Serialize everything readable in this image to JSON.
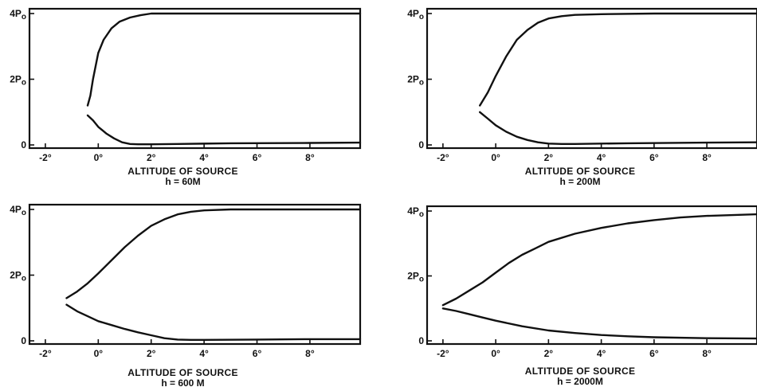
{
  "chart_data": [
    {
      "type": "line",
      "xlabel": "ALTITUDE OF SOURCE",
      "subtitle": "h = 60M",
      "xlim": [
        -2.6,
        9.9
      ],
      "ylim": [
        0,
        4
      ],
      "xticks": [
        {
          "v": -2,
          "label": "-2°"
        },
        {
          "v": 0,
          "label": "0°"
        },
        {
          "v": 2,
          "label": "2°"
        },
        {
          "v": 4,
          "label": "4°"
        },
        {
          "v": 6,
          "label": "6°"
        },
        {
          "v": 8,
          "label": "8°"
        }
      ],
      "yticks": [
        {
          "v": 0,
          "label": "0"
        },
        {
          "v": 2,
          "label": "2Po"
        },
        {
          "v": 4,
          "label": "4Po"
        }
      ],
      "grid": false,
      "series": [
        {
          "x": [
            -0.4,
            -0.3,
            -0.2,
            0,
            0.2,
            0.5,
            0.8,
            1.2,
            1.6,
            2.0,
            3,
            5,
            8,
            9.9
          ],
          "values": [
            1.2,
            1.5,
            2.0,
            2.8,
            3.2,
            3.55,
            3.75,
            3.88,
            3.95,
            4.0,
            4.0,
            4.0,
            4.0,
            4.0
          ]
        },
        {
          "x": [
            -0.4,
            -0.2,
            0,
            0.3,
            0.6,
            0.9,
            1.2,
            1.5,
            2,
            3,
            5,
            8,
            9.9
          ],
          "values": [
            0.9,
            0.75,
            0.55,
            0.35,
            0.2,
            0.08,
            0.03,
            0.02,
            0.02,
            0.03,
            0.05,
            0.06,
            0.07
          ]
        }
      ]
    },
    {
      "type": "line",
      "xlabel": "ALTITUDE OF SOURCE",
      "subtitle": "h = 200M",
      "xlim": [
        -2.6,
        9.9
      ],
      "ylim": [
        0,
        4
      ],
      "xticks": [
        {
          "v": -2,
          "label": "-2°"
        },
        {
          "v": 0,
          "label": "0°"
        },
        {
          "v": 2,
          "label": "2°"
        },
        {
          "v": 4,
          "label": "4°"
        },
        {
          "v": 6,
          "label": "6°"
        },
        {
          "v": 8,
          "label": "8°"
        }
      ],
      "yticks": [
        {
          "v": 0,
          "label": "0"
        },
        {
          "v": 2,
          "label": "2Po"
        },
        {
          "v": 4,
          "label": "4Po"
        }
      ],
      "grid": false,
      "series": [
        {
          "x": [
            -0.6,
            -0.3,
            0,
            0.4,
            0.8,
            1.2,
            1.6,
            2.0,
            2.5,
            3.0,
            4.0,
            6,
            8,
            9.9
          ],
          "values": [
            1.2,
            1.6,
            2.1,
            2.7,
            3.2,
            3.5,
            3.72,
            3.85,
            3.92,
            3.96,
            3.98,
            4.0,
            4.0,
            4.0
          ]
        },
        {
          "x": [
            -0.6,
            -0.3,
            0,
            0.4,
            0.8,
            1.2,
            1.6,
            2.0,
            2.5,
            3.0,
            5,
            8,
            9.9
          ],
          "values": [
            1.0,
            0.8,
            0.6,
            0.4,
            0.25,
            0.15,
            0.08,
            0.04,
            0.03,
            0.03,
            0.05,
            0.07,
            0.08
          ]
        }
      ]
    },
    {
      "type": "line",
      "xlabel": "ALTITUDE OF SOURCE",
      "subtitle": "h = 600 M",
      "xlim": [
        -2.6,
        9.9
      ],
      "ylim": [
        0,
        4
      ],
      "xticks": [
        {
          "v": -2,
          "label": "-2°"
        },
        {
          "v": 0,
          "label": "0°"
        },
        {
          "v": 2,
          "label": "2°"
        },
        {
          "v": 4,
          "label": "4°"
        },
        {
          "v": 6,
          "label": "6°"
        },
        {
          "v": 8,
          "label": "8°"
        }
      ],
      "yticks": [
        {
          "v": 0,
          "label": "0"
        },
        {
          "v": 2,
          "label": "2Po"
        },
        {
          "v": 4,
          "label": "4Po"
        }
      ],
      "grid": false,
      "series": [
        {
          "x": [
            -1.2,
            -0.8,
            -0.4,
            0,
            0.5,
            1.0,
            1.5,
            2.0,
            2.5,
            3.0,
            3.5,
            4.0,
            5.0,
            6,
            8,
            9.9
          ],
          "values": [
            1.3,
            1.5,
            1.75,
            2.05,
            2.45,
            2.85,
            3.2,
            3.5,
            3.7,
            3.85,
            3.93,
            3.97,
            4.0,
            4.0,
            4.0,
            4.0
          ]
        },
        {
          "x": [
            -1.2,
            -0.8,
            -0.4,
            0,
            0.5,
            1.0,
            1.5,
            2.0,
            2.5,
            3.0,
            3.5,
            4,
            6,
            8,
            9.9
          ],
          "values": [
            1.1,
            0.9,
            0.75,
            0.6,
            0.48,
            0.36,
            0.26,
            0.17,
            0.08,
            0.04,
            0.03,
            0.03,
            0.04,
            0.05,
            0.05
          ]
        }
      ]
    },
    {
      "type": "line",
      "xlabel": "ALTITUDE OF SOURCE",
      "subtitle": "h = 2000M",
      "xlim": [
        -2.6,
        9.9
      ],
      "ylim": [
        0,
        4
      ],
      "xticks": [
        {
          "v": -2,
          "label": "-2°"
        },
        {
          "v": 0,
          "label": "0°"
        },
        {
          "v": 2,
          "label": "2°"
        },
        {
          "v": 4,
          "label": "4°"
        },
        {
          "v": 6,
          "label": "6°"
        },
        {
          "v": 8,
          "label": "8°"
        }
      ],
      "yticks": [
        {
          "v": 0,
          "label": "0"
        },
        {
          "v": 2,
          "label": "2Po"
        },
        {
          "v": 4,
          "label": "4Po"
        }
      ],
      "grid": false,
      "series": [
        {
          "x": [
            -2.0,
            -1.5,
            -1.0,
            -0.5,
            0,
            0.5,
            1.0,
            1.5,
            2.0,
            3.0,
            4.0,
            5.0,
            6.0,
            7.0,
            8.0,
            9.9
          ],
          "values": [
            1.1,
            1.3,
            1.55,
            1.8,
            2.1,
            2.4,
            2.65,
            2.85,
            3.05,
            3.3,
            3.48,
            3.62,
            3.72,
            3.8,
            3.85,
            3.9
          ]
        },
        {
          "x": [
            -2.0,
            -1.5,
            -1.0,
            -0.5,
            0,
            1.0,
            2.0,
            3.0,
            4.0,
            5.0,
            6.0,
            8.0,
            9.9
          ],
          "values": [
            1.0,
            0.92,
            0.82,
            0.72,
            0.62,
            0.45,
            0.32,
            0.24,
            0.18,
            0.14,
            0.11,
            0.08,
            0.07
          ]
        }
      ]
    }
  ]
}
